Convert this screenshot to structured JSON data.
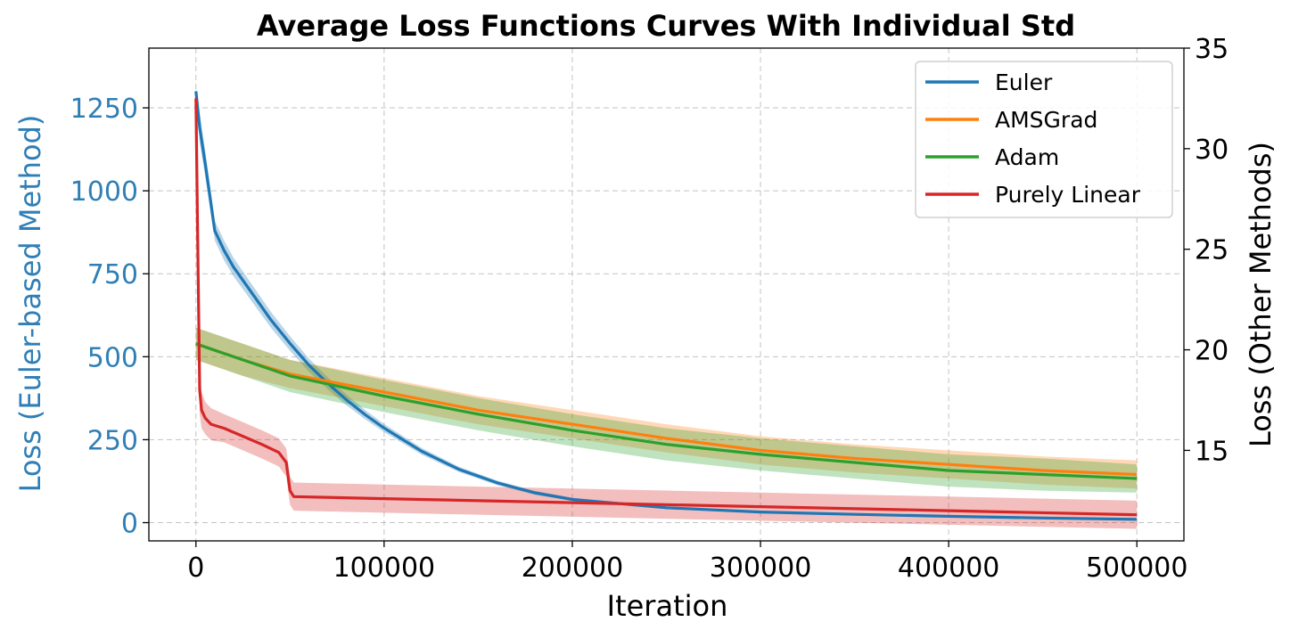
{
  "chart_data": {
    "type": "line",
    "title": "Average Loss Functions Curves With Individual Std",
    "xlabel": "Iteration",
    "ylabel_left": "Loss (Euler-based Method)",
    "ylabel_right": "Loss (Other Methods)",
    "xlim": [
      -25000,
      525000
    ],
    "ylim_left": [
      -55,
      1430
    ],
    "ylim_right": [
      10.5,
      35
    ],
    "x_ticks": [
      0,
      100000,
      200000,
      300000,
      400000,
      500000
    ],
    "y_ticks_left": [
      0,
      250,
      500,
      750,
      1000,
      1250
    ],
    "y_ticks_right": [
      15,
      20,
      25,
      30,
      35
    ],
    "grid": true,
    "legend_position": "top-right",
    "left_axis_color": "#2f7fb6",
    "series": [
      {
        "name": "Euler",
        "axis": "left",
        "color": "#1f77b4",
        "x": [
          0,
          2000,
          5000,
          8000,
          10000,
          15000,
          20000,
          30000,
          40000,
          50000,
          60000,
          70000,
          80000,
          90000,
          100000,
          120000,
          140000,
          160000,
          180000,
          200000,
          250000,
          300000,
          350000,
          400000,
          450000,
          500000
        ],
        "y": [
          1300,
          1190,
          1080,
          960,
          880,
          820,
          770,
          690,
          610,
          540,
          475,
          420,
          370,
          325,
          285,
          215,
          160,
          120,
          90,
          70,
          45,
          32,
          25,
          19,
          14,
          10
        ],
        "std": [
          10,
          45,
          40,
          35,
          30,
          30,
          28,
          26,
          24,
          22,
          20,
          18,
          16,
          14,
          12,
          10,
          8,
          7,
          6,
          5,
          4,
          3,
          2,
          2,
          2,
          2
        ]
      },
      {
        "name": "AMSGrad",
        "axis": "right",
        "color": "#ff7f0e",
        "x": [
          0,
          25000,
          50000,
          100000,
          150000,
          200000,
          250000,
          300000,
          350000,
          400000,
          450000,
          500000
        ],
        "y": [
          20.3,
          19.5,
          18.8,
          17.9,
          17.0,
          16.3,
          15.6,
          15.0,
          14.6,
          14.3,
          14.0,
          13.8
        ],
        "std": [
          0.8,
          0.8,
          0.7,
          0.7,
          0.7,
          0.7,
          0.7,
          0.7,
          0.7,
          0.7,
          0.7,
          0.7
        ]
      },
      {
        "name": "Adam",
        "axis": "right",
        "color": "#2ca02c",
        "x": [
          0,
          25000,
          50000,
          100000,
          150000,
          200000,
          250000,
          300000,
          350000,
          400000,
          450000,
          500000
        ],
        "y": [
          20.3,
          19.5,
          18.7,
          17.7,
          16.8,
          16.0,
          15.3,
          14.8,
          14.4,
          14.0,
          13.8,
          13.6
        ],
        "std": [
          0.8,
          0.8,
          0.8,
          0.8,
          0.8,
          0.8,
          0.8,
          0.8,
          0.8,
          0.8,
          0.8,
          0.7
        ]
      },
      {
        "name": "Purely Linear",
        "axis": "right",
        "color": "#d62728",
        "x": [
          0,
          1000,
          2000,
          3000,
          5000,
          8000,
          15000,
          25000,
          35000,
          44000,
          48000,
          50000,
          52000,
          100000,
          200000,
          300000,
          400000,
          500000
        ],
        "y": [
          32.5,
          25.0,
          18.0,
          17.0,
          16.6,
          16.3,
          16.1,
          15.7,
          15.3,
          14.9,
          14.4,
          13.0,
          12.7,
          12.6,
          12.4,
          12.2,
          12.0,
          11.8
        ],
        "std": [
          1.0,
          1.5,
          1.2,
          0.9,
          0.8,
          0.8,
          0.7,
          0.7,
          0.7,
          0.7,
          0.7,
          0.7,
          0.7,
          0.7,
          0.7,
          0.7,
          0.7,
          0.7
        ]
      }
    ]
  }
}
